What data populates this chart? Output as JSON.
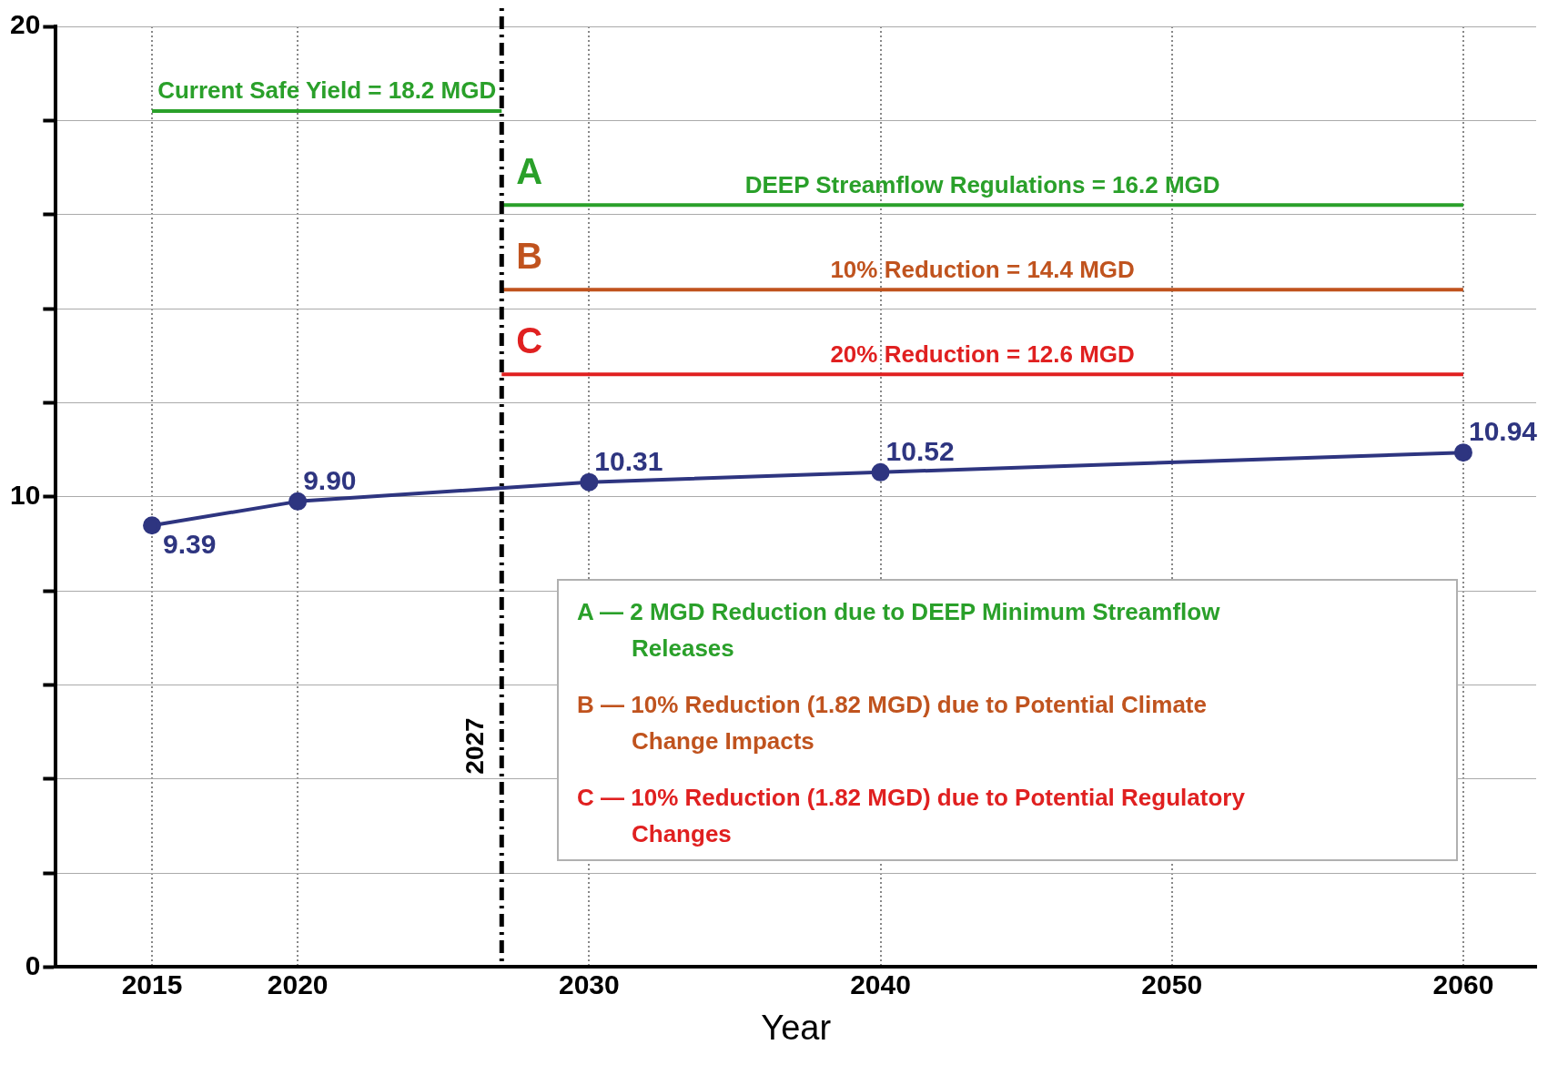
{
  "chart_data": {
    "type": "line",
    "xlabel": "Year",
    "xlim": [
      2011.7,
      2062.5
    ],
    "xticks": [
      2015,
      2020,
      2030,
      2040,
      2050,
      2060
    ],
    "ylim": [
      0,
      20
    ],
    "yticks": [
      0,
      {
        "value": 2,
        "label": null
      },
      {
        "value": 4,
        "label": null
      },
      {
        "value": 6,
        "label": null
      },
      {
        "value": 8,
        "label": null
      },
      10,
      {
        "value": 12,
        "label": null
      },
      {
        "value": 14,
        "label": null
      },
      {
        "value": 16,
        "label": null
      },
      {
        "value": 18,
        "label": null
      },
      20
    ],
    "grid": true,
    "legend": false,
    "series": [
      {
        "x": [
          2015,
          2020,
          2030,
          2040,
          2060
        ],
        "values": [
          9.39,
          9.9,
          10.31,
          10.52,
          10.94
        ],
        "value_labels": [
          "9.39",
          "9.90",
          "10.31",
          "10.52",
          "10.94"
        ],
        "color": "#2e3580",
        "marker": "circle"
      },
      {
        "name": "Current Safe Yield = 18.2 MGD",
        "type": "line",
        "x": [
          2015,
          2027
        ],
        "values": [
          18.2,
          18.2
        ],
        "color": "#2aa02a",
        "marker": "none"
      },
      {
        "name": "DEEP Streamflow Regulations = 16.2 MGD",
        "type": "line",
        "x": [
          2027,
          2060
        ],
        "values": [
          16.2,
          16.2
        ],
        "color": "#2aa02a",
        "marker": "none"
      },
      {
        "name": "10% Reduction = 14.4 MGD",
        "type": "line",
        "x": [
          2027,
          2060
        ],
        "values": [
          14.4,
          14.4
        ],
        "color": "#c0531e",
        "marker": "none"
      },
      {
        "name": "20% Reduction = 12.6 MGD",
        "type": "line",
        "x": [
          2027,
          2060
        ],
        "values": [
          12.6,
          12.6
        ],
        "color": "#e02020",
        "marker": "none"
      }
    ],
    "ref_lines": [
      {
        "axis": "x",
        "value": 2027,
        "label": "2027",
        "color": "#000000",
        "line_style": "dashed"
      }
    ],
    "annotations": [
      "A",
      "B",
      "C",
      "A — 2 MGD Reduction due to DEEP Minimum Streamflow Releases",
      "B — 10% Reduction (1.82 MGD) due to Potential Climate Change Impacts",
      "C — 10% Reduction (1.82 MGD) due to Potential Regulatory Changes"
    ]
  }
}
